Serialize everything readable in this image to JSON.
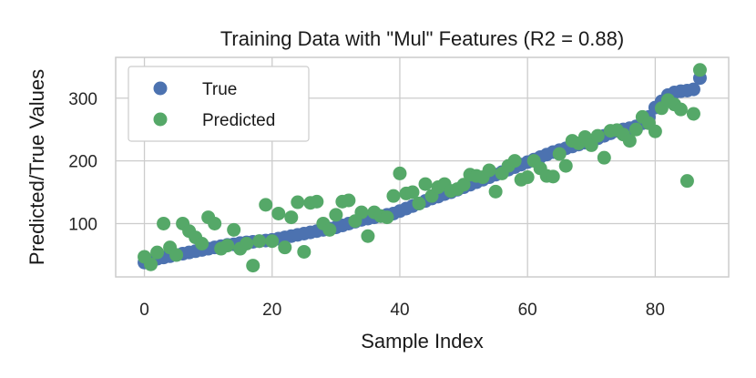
{
  "chart_data": {
    "type": "scatter",
    "title": "Training Data with \"Mul\" Features (R2 = 0.88)",
    "xlabel": "Sample Index",
    "ylabel": "Predicted/True Values",
    "xlim": [
      -4.5,
      91.5
    ],
    "ylim": [
      15,
      365
    ],
    "xticks": [
      0,
      20,
      40,
      60,
      80
    ],
    "yticks": [
      100,
      200,
      300
    ],
    "grid": true,
    "legend_position": "top-left",
    "series": [
      {
        "name": "True",
        "color": "#4c72b0",
        "x": [
          0,
          1,
          2,
          3,
          4,
          5,
          6,
          7,
          8,
          9,
          10,
          11,
          12,
          13,
          14,
          15,
          16,
          17,
          18,
          19,
          20,
          21,
          22,
          23,
          24,
          25,
          26,
          27,
          28,
          29,
          30,
          31,
          32,
          33,
          34,
          35,
          36,
          37,
          38,
          39,
          40,
          41,
          42,
          43,
          44,
          45,
          46,
          47,
          48,
          49,
          50,
          51,
          52,
          53,
          54,
          55,
          56,
          57,
          58,
          59,
          60,
          61,
          62,
          63,
          64,
          65,
          66,
          67,
          68,
          69,
          70,
          71,
          72,
          73,
          74,
          75,
          76,
          77,
          78,
          79,
          80,
          81,
          82,
          83,
          84,
          85,
          86,
          87
        ],
        "y": [
          38,
          40,
          44,
          46,
          48,
          50,
          52,
          54,
          56,
          58,
          60,
          62,
          64,
          66,
          67,
          69,
          70,
          71,
          72,
          73,
          74,
          76,
          78,
          80,
          82,
          84,
          86,
          88,
          90,
          92,
          94,
          97,
          100,
          103,
          106,
          108,
          110,
          112,
          114,
          116,
          120,
          124,
          128,
          132,
          136,
          140,
          143,
          147,
          150,
          154,
          158,
          162,
          166,
          170,
          174,
          178,
          182,
          186,
          190,
          194,
          198,
          202,
          206,
          210,
          214,
          217,
          220,
          223,
          226,
          229,
          232,
          236,
          240,
          244,
          248,
          250,
          252,
          255,
          260,
          270,
          285,
          295,
          305,
          309,
          311,
          312,
          314,
          332
        ]
      },
      {
        "name": "Predicted",
        "color": "#55a868",
        "x": [
          0,
          1,
          2,
          3,
          4,
          5,
          6,
          7,
          8,
          9,
          10,
          11,
          12,
          13,
          14,
          15,
          16,
          17,
          18,
          19,
          20,
          21,
          22,
          23,
          24,
          25,
          26,
          27,
          28,
          29,
          30,
          31,
          32,
          33,
          34,
          35,
          36,
          37,
          38,
          39,
          40,
          41,
          42,
          43,
          44,
          45,
          46,
          47,
          48,
          49,
          50,
          51,
          52,
          53,
          54,
          55,
          56,
          57,
          58,
          59,
          60,
          61,
          62,
          63,
          64,
          65,
          66,
          67,
          68,
          69,
          70,
          71,
          72,
          73,
          74,
          75,
          76,
          77,
          78,
          79,
          80,
          81,
          82,
          83,
          84,
          85,
          86,
          87
        ],
        "y": [
          47,
          35,
          54,
          100,
          62,
          50,
          100,
          88,
          78,
          68,
          110,
          100,
          60,
          65,
          90,
          60,
          68,
          33,
          72,
          130,
          72,
          116,
          62,
          110,
          134,
          55,
          133,
          135,
          100,
          90,
          114,
          135,
          137,
          104,
          118,
          80,
          118,
          112,
          110,
          144,
          180,
          148,
          150,
          132,
          163,
          144,
          158,
          163,
          152,
          155,
          162,
          178,
          176,
          174,
          185,
          151,
          180,
          192,
          200,
          170,
          174,
          200,
          188,
          176,
          175,
          211,
          192,
          232,
          228,
          238,
          225,
          240,
          205,
          248,
          249,
          242,
          232,
          250,
          270,
          260,
          247,
          284,
          297,
          290,
          282,
          168,
          275,
          345
        ]
      }
    ]
  }
}
